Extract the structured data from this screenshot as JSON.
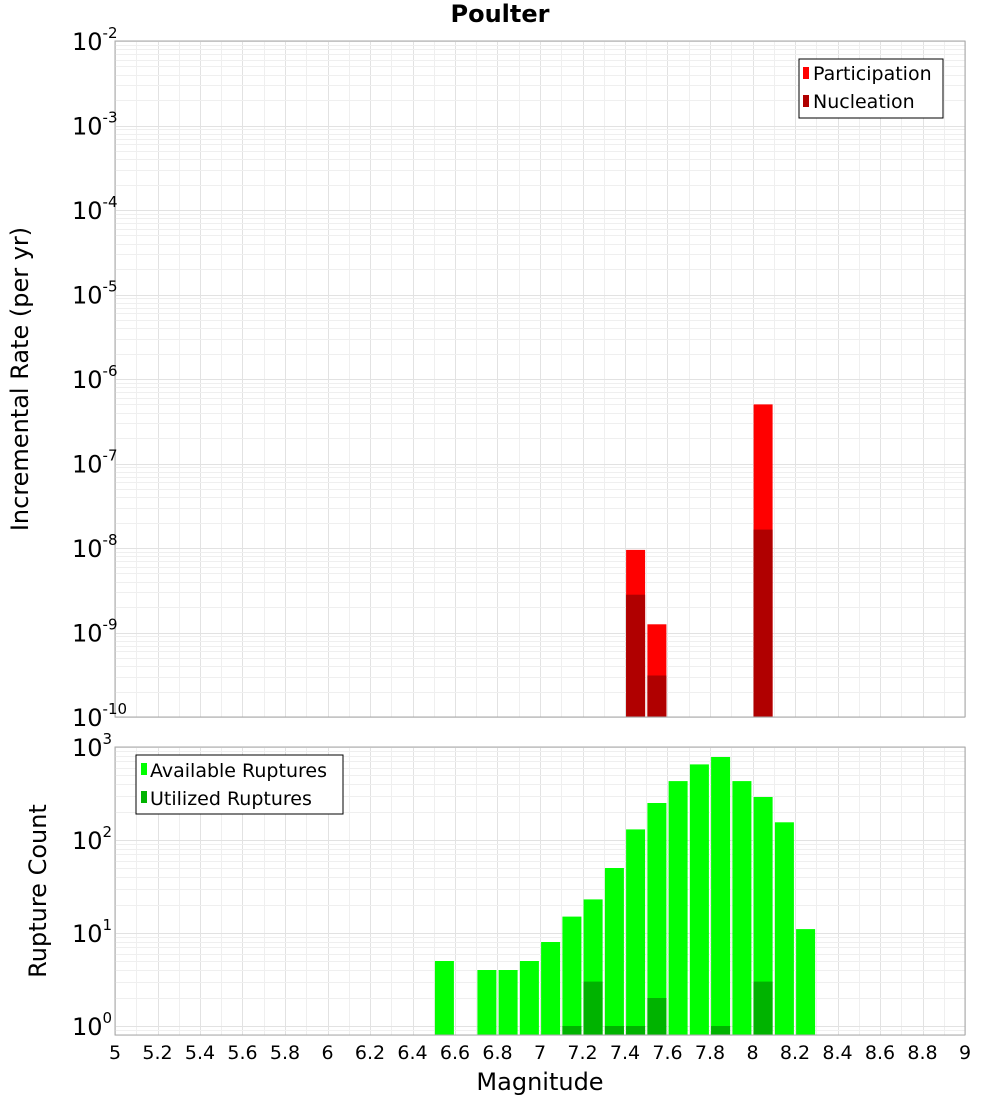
{
  "chart_data": [
    {
      "type": "bar",
      "title": "Poulter",
      "xlabel": "",
      "ylabel": "Incremental Rate (per yr)",
      "yscale": "log",
      "ylim": [
        1e-10,
        0.01
      ],
      "xlim": [
        5,
        9
      ],
      "grid": true,
      "legend_position": "top-right",
      "y_tick_labels": [
        {
          "base": "10",
          "exp": "-2"
        },
        {
          "base": "10",
          "exp": "-3"
        },
        {
          "base": "10",
          "exp": "-4"
        },
        {
          "base": "10",
          "exp": "-5"
        },
        {
          "base": "10",
          "exp": "-6"
        },
        {
          "base": "10",
          "exp": "-7"
        },
        {
          "base": "10",
          "exp": "-8"
        },
        {
          "base": "10",
          "exp": "-9"
        },
        {
          "base": "10",
          "exp": "-10"
        }
      ],
      "series": [
        {
          "name": "Participation",
          "color": "#ff0000",
          "points": [
            {
              "x": 7.45,
              "y": 9.5e-09
            },
            {
              "x": 7.55,
              "y": 1.25e-09
            },
            {
              "x": 8.05,
              "y": 5e-07
            }
          ]
        },
        {
          "name": "Nucleation",
          "color": "#b00000",
          "points": [
            {
              "x": 7.45,
              "y": 2.8e-09
            },
            {
              "x": 7.55,
              "y": 3.1e-10
            },
            {
              "x": 8.05,
              "y": 1.65e-08
            }
          ]
        }
      ]
    },
    {
      "type": "bar",
      "xlabel": "Magnitude",
      "ylabel": "Rupture Count",
      "yscale": "log",
      "ylim": [
        0.8,
        1000
      ],
      "xlim": [
        5,
        9
      ],
      "grid": true,
      "legend_position": "top-left",
      "x_tick_labels": [
        "5",
        "5.2",
        "5.4",
        "5.6",
        "5.8",
        "6",
        "6.2",
        "6.4",
        "6.6",
        "6.8",
        "7",
        "7.2",
        "7.4",
        "7.6",
        "7.8",
        "8",
        "8.2",
        "8.4",
        "8.6",
        "8.8",
        "9"
      ],
      "y_tick_labels": [
        {
          "base": "10",
          "exp": "3"
        },
        {
          "base": "10",
          "exp": "2"
        },
        {
          "base": "10",
          "exp": "1"
        },
        {
          "base": "10",
          "exp": "0"
        }
      ],
      "series": [
        {
          "name": "Available Ruptures",
          "color": "#00ff00",
          "points": [
            {
              "x": 6.55,
              "y": 5
            },
            {
              "x": 6.75,
              "y": 4
            },
            {
              "x": 6.85,
              "y": 4
            },
            {
              "x": 6.95,
              "y": 5
            },
            {
              "x": 7.05,
              "y": 8
            },
            {
              "x": 7.15,
              "y": 15
            },
            {
              "x": 7.25,
              "y": 23
            },
            {
              "x": 7.35,
              "y": 50
            },
            {
              "x": 7.45,
              "y": 130
            },
            {
              "x": 7.55,
              "y": 250
            },
            {
              "x": 7.65,
              "y": 430
            },
            {
              "x": 7.75,
              "y": 650
            },
            {
              "x": 7.85,
              "y": 780
            },
            {
              "x": 7.95,
              "y": 430
            },
            {
              "x": 8.05,
              "y": 290
            },
            {
              "x": 8.15,
              "y": 155
            },
            {
              "x": 8.25,
              "y": 11
            }
          ]
        },
        {
          "name": "Utilized Ruptures",
          "color": "#00b300",
          "points": [
            {
              "x": 7.15,
              "y": 1
            },
            {
              "x": 7.25,
              "y": 3
            },
            {
              "x": 7.35,
              "y": 1
            },
            {
              "x": 7.45,
              "y": 1
            },
            {
              "x": 7.55,
              "y": 2
            },
            {
              "x": 7.85,
              "y": 1
            },
            {
              "x": 8.05,
              "y": 3
            }
          ]
        }
      ]
    }
  ]
}
